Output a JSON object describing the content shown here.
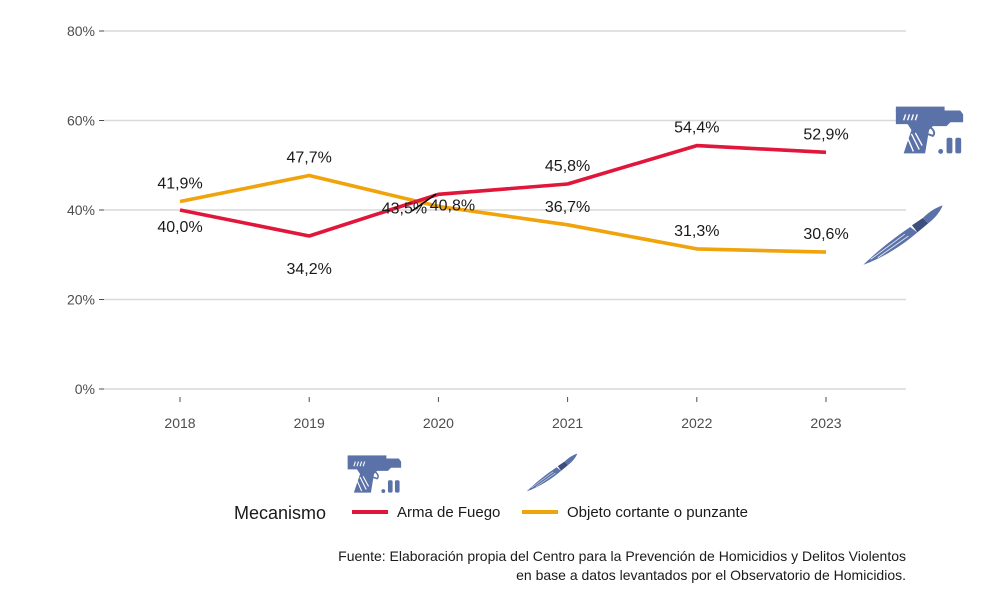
{
  "chart_data": {
    "type": "line",
    "categories": [
      "2018",
      "2019",
      "2020",
      "2021",
      "2022",
      "2023"
    ],
    "series": [
      {
        "name": "Arma de Fuego",
        "color": "#e0163a",
        "icon": "pistol-icon",
        "values": [
          40.0,
          34.2,
          43.5,
          45.8,
          54.4,
          52.9
        ],
        "labels": [
          "40,0%",
          "34,2%",
          "43,5%",
          "45,8%",
          "54,4%",
          "52,9%"
        ]
      },
      {
        "name": "Objeto cortante o punzante",
        "color": "#f0a30a",
        "icon": "knife-icon",
        "values": [
          41.9,
          47.7,
          40.8,
          36.7,
          31.3,
          30.6
        ],
        "labels": [
          "41,9%",
          "47,7%",
          "40,8%",
          "36,7%",
          "31,3%",
          "30,6%"
        ]
      }
    ],
    "y_ticks": [
      0,
      20,
      40,
      60,
      80
    ],
    "y_tick_labels": [
      "0%",
      "20%",
      "40%",
      "60%",
      "80%"
    ],
    "ylim": [
      0,
      80
    ],
    "grid": true,
    "legend": {
      "title": "Mecanismo",
      "placement": "bottom"
    },
    "caption": [
      "Fuente: Elaboración propia del Centro para la Prevención de Homicidios y Delitos Violentos",
      "en base a datos levantados por el Observatorio de Homicidios."
    ]
  }
}
